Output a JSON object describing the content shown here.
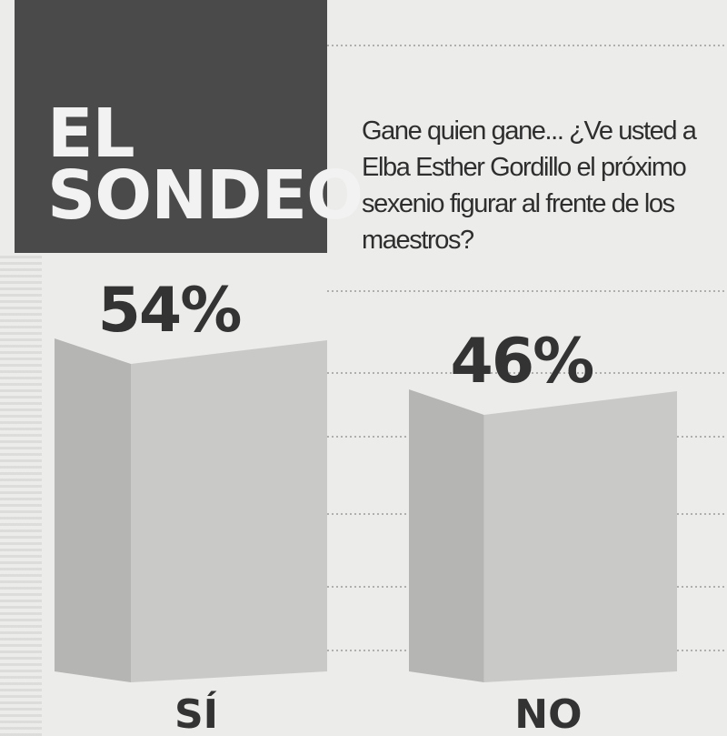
{
  "header": {
    "title_line1": "EL",
    "title_line2": "SONDEO",
    "question_lines": [
      "Gane quien gane... ¿Ve usted a",
      "Elba Esther Gordillo el próximo",
      "sexenio figurar al frente de los",
      "maestros?"
    ]
  },
  "colors": {
    "title_bg": "#4a4a4a",
    "title_text": "#f2f2f2",
    "bar_fill": "#c9c9c7",
    "bar_shade": "#b5b5b3",
    "label_text": "#333333",
    "grid_line": "#8a8a8a"
  },
  "chart_data": {
    "type": "bar",
    "categories": [
      "SÍ",
      "NO"
    ],
    "values": [
      54,
      46
    ],
    "value_labels": [
      "54%",
      "46%"
    ],
    "title": "",
    "xlabel": "",
    "ylabel": "",
    "grid": true
  }
}
